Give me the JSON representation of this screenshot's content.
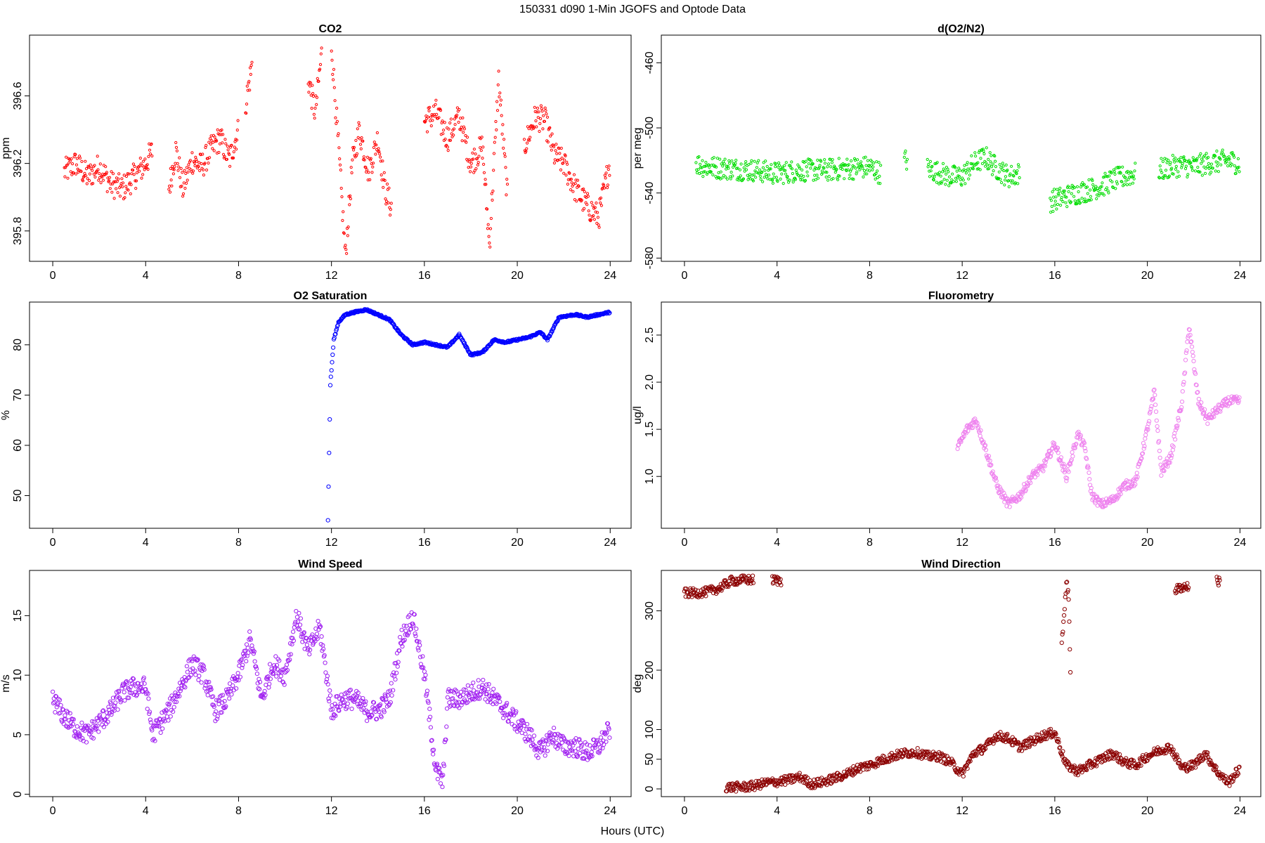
{
  "figure": {
    "title": "150331   d090   1-Min  JGOFS and Optode Data",
    "xlabel": "Hours (UTC)"
  },
  "chart_data": [
    {
      "id": "co2",
      "type": "scatter",
      "title": "CO2",
      "ylabel": "ppm",
      "xlim": [
        -1,
        24.9
      ],
      "ylim": [
        395.62,
        396.96
      ],
      "xticks": [
        0,
        4,
        8,
        12,
        16,
        20,
        24
      ],
      "yticks": [
        395.8,
        396.2,
        396.6
      ],
      "color": "#ff0000",
      "marker_r": 1.6,
      "segments": [
        {
          "x": [
            0.5,
            1,
            1.5,
            2,
            2.5,
            3,
            3.5,
            4,
            4.3
          ],
          "y": [
            396.15,
            396.2,
            396.12,
            396.18,
            396.08,
            396.05,
            396.12,
            396.2,
            396.28
          ]
        },
        {
          "x": [
            5,
            5.3,
            5.6,
            6,
            6.4,
            6.8,
            7.2,
            7.6,
            8
          ],
          "y": [
            396.05,
            396.28,
            396.05,
            396.22,
            396.18,
            396.28,
            396.35,
            396.22,
            396.4
          ]
        },
        {
          "x": [
            8.3,
            8.6
          ],
          "y": [
            396.55,
            396.8
          ]
        },
        {
          "x": [
            11,
            11.3,
            11.6
          ],
          "y": [
            396.7,
            396.5,
            396.88
          ]
        },
        {
          "x": [
            12,
            12.3,
            12.6,
            12.9,
            13.2,
            13.6,
            14,
            14.3,
            14.6
          ],
          "y": [
            396.9,
            396.3,
            395.65,
            396.2,
            396.4,
            396.15,
            396.35,
            396.05,
            395.93
          ]
        },
        {
          "x": [
            16,
            16.5,
            17,
            17.5,
            18,
            18.5,
            18.8,
            19.2,
            19.6
          ],
          "y": [
            396.45,
            396.5,
            396.35,
            396.48,
            396.2,
            396.3,
            395.72,
            396.7,
            395.95
          ]
        },
        {
          "x": [
            20.3,
            20.8,
            21.2,
            21.6,
            22,
            22.5,
            23,
            23.5,
            24
          ],
          "y": [
            396.3,
            396.48,
            396.45,
            396.25,
            396.2,
            396.05,
            395.95,
            395.88,
            396.22
          ]
        }
      ]
    },
    {
      "id": "o2n2",
      "type": "scatter",
      "title": "d(O2/N2)",
      "ylabel": "per meg",
      "xlim": [
        -1,
        24.9
      ],
      "ylim": [
        -582,
        -443
      ],
      "xticks": [
        0,
        4,
        8,
        12,
        16,
        20,
        24
      ],
      "yticks": [
        -460,
        -500,
        -540,
        -580
      ],
      "color": "#00dd00",
      "marker_r": 1.6,
      "segments": [
        {
          "x": [
            0.5,
            1,
            2,
            3,
            4,
            5,
            6,
            7,
            8,
            8.5
          ],
          "y": [
            -522,
            -524,
            -525,
            -526,
            -528,
            -526,
            -526,
            -525,
            -524,
            -528
          ]
        },
        {
          "x": [
            9.5
          ],
          "y": [
            -520
          ]
        },
        {
          "x": [
            10.5,
            11.5,
            12,
            12.5,
            13,
            13.5,
            14,
            14.5
          ],
          "y": [
            -525,
            -530,
            -530,
            -522,
            -518,
            -525,
            -530,
            -528
          ]
        },
        {
          "x": [
            15.8,
            16.5,
            17,
            17.5,
            18,
            18.5,
            19,
            19.5
          ],
          "y": [
            -545,
            -542,
            -540,
            -538,
            -536,
            -532,
            -530,
            -528
          ]
        },
        {
          "x": [
            20.5,
            21,
            21.5,
            22,
            22.5,
            23,
            23.5,
            24
          ],
          "y": [
            -526,
            -524,
            -523,
            -524,
            -522,
            -521,
            -520,
            -522
          ]
        }
      ]
    },
    {
      "id": "o2sat",
      "type": "scatter",
      "title": "O2 Saturation",
      "ylabel": "%",
      "xlim": [
        -1,
        24.9
      ],
      "ylim": [
        43.5,
        88.5
      ],
      "xticks": [
        0,
        4,
        8,
        12,
        16,
        20,
        24
      ],
      "yticks": [
        50,
        60,
        70,
        80
      ],
      "color": "#0000ff",
      "marker_r": 2.6,
      "segments": [
        {
          "x": [
            11.85,
            11.95,
            12.1,
            12.3,
            12.6,
            13,
            13.5,
            14,
            14.5,
            15,
            15.5,
            16,
            16.5,
            17,
            17.5,
            18,
            18.5,
            19,
            19.5,
            20,
            20.5,
            21,
            21.3,
            21.8,
            22.5,
            23,
            23.5,
            24
          ],
          "y": [
            45,
            72,
            81,
            84.5,
            86,
            86.5,
            87,
            86,
            85,
            82,
            80,
            80.5,
            80,
            79.5,
            82,
            78,
            78.5,
            81,
            80.5,
            81,
            81.5,
            82.5,
            81,
            85.5,
            86,
            85.5,
            86,
            86.5
          ]
        }
      ]
    },
    {
      "id": "fluoro",
      "type": "scatter",
      "title": "Fluorometry",
      "ylabel": "ug/l",
      "xlim": [
        -1,
        24.9
      ],
      "ylim": [
        0.45,
        2.85
      ],
      "xticks": [
        0,
        4,
        8,
        12,
        16,
        20,
        24
      ],
      "yticks": [
        1.0,
        1.5,
        2.0,
        2.5
      ],
      "color": "#ee82ee",
      "marker_r": 2.6,
      "segments": [
        {
          "x": [
            11.8,
            12.2,
            12.6,
            13,
            13.5,
            14,
            14.5,
            15,
            15.5,
            16,
            16.5,
            17,
            17.3,
            17.6,
            18,
            18.5,
            19,
            19.5,
            20,
            20.3,
            20.6,
            21,
            21.5,
            21.8,
            22.2,
            22.6,
            23,
            23.5,
            24
          ],
          "y": [
            1.3,
            1.5,
            1.6,
            1.3,
            0.9,
            0.7,
            0.8,
            1.0,
            1.1,
            1.35,
            1.0,
            1.45,
            1.3,
            0.8,
            0.7,
            0.75,
            0.9,
            0.95,
            1.5,
            1.9,
            1.05,
            1.2,
            1.8,
            2.6,
            1.8,
            1.6,
            1.7,
            1.8,
            1.8
          ]
        }
      ]
    },
    {
      "id": "wspd",
      "type": "scatter",
      "title": "Wind Speed",
      "ylabel": "m/s",
      "xlim": [
        -1,
        24.9
      ],
      "ylim": [
        -0.2,
        18.8
      ],
      "xticks": [
        0,
        4,
        8,
        12,
        16,
        20,
        24
      ],
      "yticks": [
        0,
        5,
        10,
        15
      ],
      "color": "#a020f0",
      "marker_r": 2.6,
      "segments": [
        {
          "x": [
            0,
            0.5,
            1,
            1.5,
            2,
            2.5,
            3,
            3.5,
            4,
            4.3,
            5,
            5.5,
            6,
            6.5,
            7,
            7.5,
            8,
            8.5,
            9,
            9.5,
            10,
            10.5,
            11,
            11.5,
            12,
            12.5,
            13,
            13.5,
            14,
            14.5,
            15,
            15.5,
            16,
            16.5,
            16.8,
            17,
            17.5,
            18,
            18.5,
            19,
            19.5,
            20,
            20.5,
            21,
            21.5,
            22,
            22.5,
            23,
            23.5,
            24
          ],
          "y": [
            8,
            6.5,
            5.5,
            5,
            6,
            7,
            8.5,
            9,
            9,
            5,
            7,
            9,
            11,
            10,
            7,
            8,
            10,
            13,
            8,
            11,
            10,
            15,
            12,
            14,
            7,
            8,
            8,
            7,
            7,
            8,
            13,
            15,
            10,
            2,
            1,
            8,
            8,
            8.5,
            9,
            8,
            7,
            6,
            5,
            3.5,
            5,
            4,
            4,
            3.5,
            4,
            5.5
          ]
        }
      ]
    },
    {
      "id": "wdir",
      "type": "scatter",
      "title": "Wind Direction",
      "ylabel": "deg",
      "xlim": [
        -1,
        24.9
      ],
      "ylim": [
        -13,
        368
      ],
      "xticks": [
        0,
        4,
        8,
        12,
        16,
        20,
        24
      ],
      "yticks": [
        0,
        50,
        100,
        200,
        300
      ],
      "color": "#8b0000",
      "marker_r": 2.6,
      "segments": [
        {
          "x": [
            0,
            0.5,
            1,
            1.5,
            2,
            2.5,
            3
          ],
          "y": [
            330,
            330,
            332,
            338,
            350,
            352,
            352
          ]
        },
        {
          "x": [
            3.8,
            4.2
          ],
          "y": [
            352,
            350
          ]
        },
        {
          "x": [
            1.8,
            2.5,
            3,
            3.5,
            4,
            4.5,
            5,
            5.5,
            6,
            6.5,
            7,
            7.5,
            8,
            8.5,
            9,
            9.5,
            10,
            10.5,
            11,
            11.5,
            12,
            12.5,
            13,
            13.5,
            14,
            14.5,
            15,
            15.5,
            16,
            16.5,
            17,
            17.5,
            18,
            18.5,
            19,
            19.5,
            20,
            20.5,
            21,
            21.5,
            22,
            22.5,
            23,
            23.5,
            24
          ],
          "y": [
            3,
            3,
            5,
            10,
            12,
            15,
            20,
            8,
            12,
            18,
            25,
            35,
            40,
            48,
            55,
            60,
            62,
            55,
            55,
            45,
            25,
            60,
            70,
            90,
            85,
            70,
            80,
            90,
            95,
            40,
            30,
            40,
            50,
            60,
            45,
            40,
            55,
            65,
            70,
            35,
            40,
            60,
            30,
            10,
            35
          ]
        },
        {
          "x": [
            16.3,
            16.5,
            16.6,
            16.7
          ],
          "y": [
            240,
            350,
            320,
            160
          ]
        },
        {
          "x": [
            21.2,
            21.5,
            21.8
          ],
          "y": [
            335,
            340,
            342
          ]
        },
        {
          "x": [
            23
          ],
          "y": [
            350
          ]
        }
      ]
    }
  ]
}
